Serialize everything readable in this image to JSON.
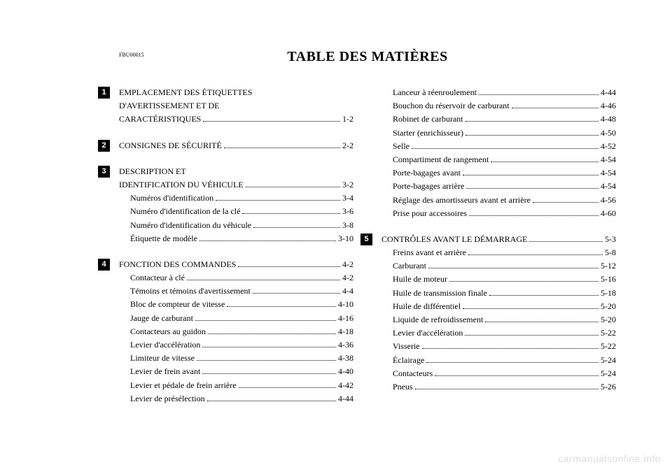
{
  "doc_code": "FBU00015",
  "title": "TABLE DES MATIÈRES",
  "watermark": "carmanualsonline.info",
  "columns": [
    [
      {
        "badge": "1",
        "lines": [
          {
            "label": "EMPLACEMENT DES ÉTIQUETTES",
            "page": null,
            "sub": false
          },
          {
            "label": "D'AVERTISSEMENT ET DE",
            "page": null,
            "sub": false
          },
          {
            "label": "CARACTÉRISTIQUES",
            "page": "1-2",
            "sub": false
          }
        ]
      },
      {
        "badge": "2",
        "lines": [
          {
            "label": "CONSIGNES DE SÉCURITÉ",
            "page": "2-2",
            "sub": false
          }
        ]
      },
      {
        "badge": "3",
        "lines": [
          {
            "label": "DESCRIPTION ET",
            "page": null,
            "sub": false
          },
          {
            "label": "IDENTIFICATION DU VÉHICULE",
            "page": "3-2",
            "sub": false
          },
          {
            "label": "Numéros d'identification",
            "page": "3-4",
            "sub": true
          },
          {
            "label": "Numéro d'identification de la clé",
            "page": "3-6",
            "sub": true
          },
          {
            "label": "Numéro d'identification du véhicule",
            "page": "3-8",
            "sub": true
          },
          {
            "label": "Étiquette de modèle",
            "page": "3-10",
            "sub": true
          }
        ]
      },
      {
        "badge": "4",
        "lines": [
          {
            "label": "FONCTION DES COMMANDES",
            "page": "4-2",
            "sub": false
          },
          {
            "label": "Contacteur à clé",
            "page": "4-2",
            "sub": true
          },
          {
            "label": "Témoins et témoins d'avertissement",
            "page": "4-4",
            "sub": true
          },
          {
            "label": "Bloc de compteur de vitesse",
            "page": "4-10",
            "sub": true
          },
          {
            "label": "Jauge de carburant",
            "page": "4-16",
            "sub": true
          },
          {
            "label": "Contacteurs au guidon",
            "page": "4-18",
            "sub": true
          },
          {
            "label": "Levier d'accélération",
            "page": "4-36",
            "sub": true
          },
          {
            "label": "Limiteur de vitesse",
            "page": "4-38",
            "sub": true
          },
          {
            "label": "Levier de frein avant",
            "page": "4-40",
            "sub": true
          },
          {
            "label": "Levier et pédale de frein arrière",
            "page": "4-42",
            "sub": true
          },
          {
            "label": "Levier de présélection",
            "page": "4-44",
            "sub": true
          }
        ]
      }
    ],
    [
      {
        "badge": null,
        "lines": [
          {
            "label": "Lanceur à réenroulement",
            "page": "4-44",
            "sub": true
          },
          {
            "label": "Bouchon du réservoir de carburant",
            "page": "4-46",
            "sub": true
          },
          {
            "label": "Robinet de carburant",
            "page": "4-48",
            "sub": true
          },
          {
            "label": "Starter (enrichisseur)",
            "page": "4-50",
            "sub": true
          },
          {
            "label": "Selle",
            "page": "4-52",
            "sub": true
          },
          {
            "label": "Compartiment de rangement",
            "page": "4-54",
            "sub": true
          },
          {
            "label": "Porte-bagages avant",
            "page": "4-54",
            "sub": true
          },
          {
            "label": "Porte-bagages arrière",
            "page": "4-54",
            "sub": true
          },
          {
            "label": "Réglage des amortisseurs avant et arrière",
            "page": "4-56",
            "sub": true
          },
          {
            "label": "Prise pour accessoires",
            "page": "4-60",
            "sub": true
          }
        ]
      },
      {
        "badge": "5",
        "lines": [
          {
            "label": "CONTRÔLES AVANT LE DÉMARRAGE",
            "page": "5-3",
            "sub": false
          },
          {
            "label": "Freins avant et arrière",
            "page": "5-8",
            "sub": true
          },
          {
            "label": "Carburant",
            "page": "5-12",
            "sub": true
          },
          {
            "label": "Huile de moteur",
            "page": "5-16",
            "sub": true
          },
          {
            "label": "Huile de transmission finale",
            "page": "5-18",
            "sub": true
          },
          {
            "label": "Huile de différentiel",
            "page": "5-20",
            "sub": true
          },
          {
            "label": "Liquide de refroidissement",
            "page": "5-20",
            "sub": true
          },
          {
            "label": "Levier d'accélération",
            "page": "5-22",
            "sub": true
          },
          {
            "label": "Visserie",
            "page": "5-22",
            "sub": true
          },
          {
            "label": "Éclairage",
            "page": "5-24",
            "sub": true
          },
          {
            "label": "Contacteurs",
            "page": "5-24",
            "sub": true
          },
          {
            "label": "Pneus",
            "page": "5-26",
            "sub": true
          }
        ]
      }
    ]
  ]
}
